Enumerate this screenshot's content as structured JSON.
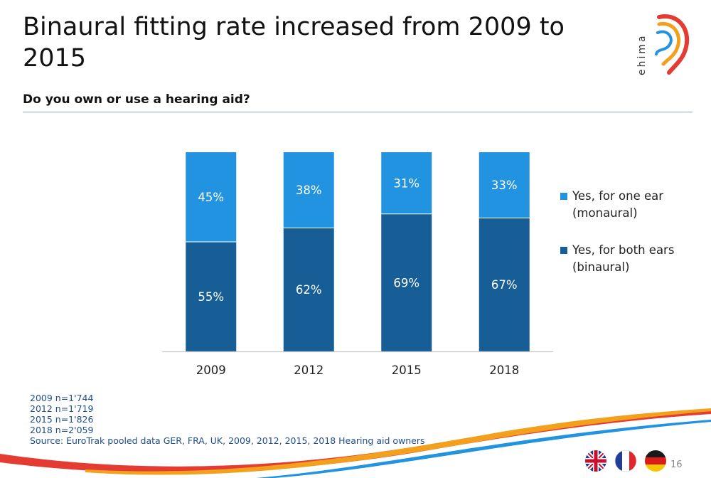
{
  "slide": {
    "title": "Binaural fitting rate increased from 2009 to 2015",
    "subtitle": "Do you own or use a hearing aid?",
    "logo_text": "ehima",
    "page_number": "16",
    "flags": [
      "uk-flag-icon",
      "france-flag-icon",
      "germany-flag-icon"
    ]
  },
  "chart_data": {
    "type": "bar",
    "stacked": true,
    "categories": [
      "2009",
      "2012",
      "2015",
      "2018"
    ],
    "series": [
      {
        "name": "Yes, for both ears (binaural)",
        "values": [
          55,
          62,
          69,
          67
        ],
        "labels": [
          "55%",
          "62%",
          "69%",
          "67%"
        ],
        "color": "#175d96"
      },
      {
        "name": "Yes, for one ear (monaural)",
        "values": [
          45,
          38,
          31,
          33
        ],
        "labels": [
          "45%",
          "38%",
          "31%",
          "33%"
        ],
        "color": "#2193e0"
      }
    ],
    "legend": [
      {
        "line1": "Yes, for one ear",
        "line2": "(monaural)",
        "color": "#2193e0"
      },
      {
        "line1": "Yes, for both ears",
        "line2": "(binaural)",
        "color": "#175d96"
      }
    ],
    "ylim": [
      0,
      100
    ],
    "grid": false,
    "legend_position": "right"
  },
  "notes": {
    "samples": [
      "2009  n=1'744",
      "2012  n=1'719",
      "2015  n=1'826",
      "2018  n=2'059"
    ],
    "source": "Source: EuroTrak pooled data GER, FRA, UK, 2009, 2012, 2015, 2018 Hearing aid owners"
  },
  "colors": {
    "accent_orange": "#f3a11c",
    "accent_red": "#e43c33",
    "note_blue": "#1f4e8c"
  }
}
